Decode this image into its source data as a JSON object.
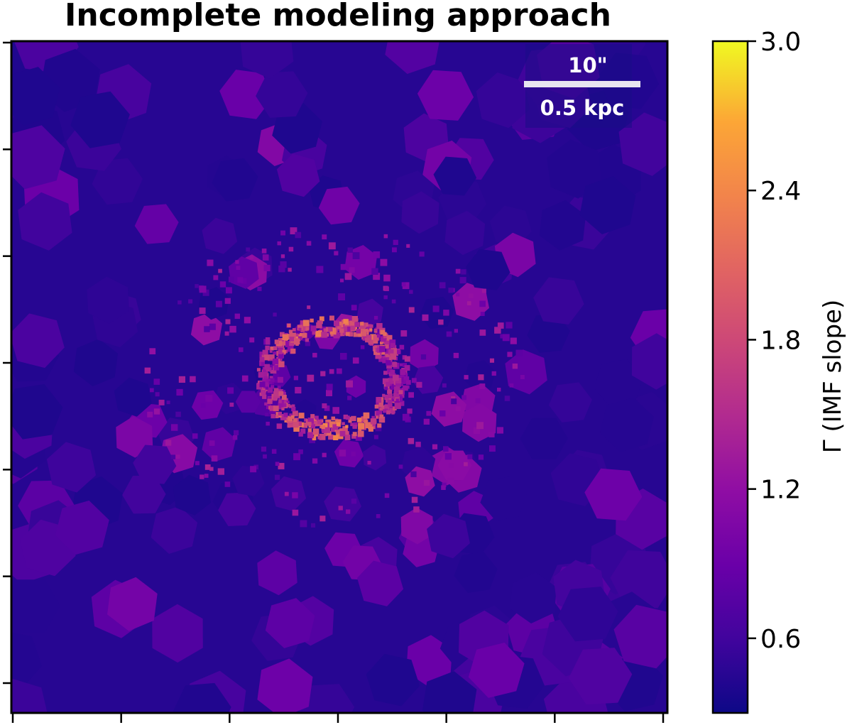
{
  "chart_data": {
    "type": "heatmap",
    "title": "Incomplete modeling approach",
    "colormap": "plasma",
    "colorbar": {
      "label": "Γ (IMF slope)",
      "range": [
        0.3,
        3.0
      ],
      "ticks": [
        0.6,
        1.2,
        1.8,
        2.4,
        3.0
      ],
      "tick_labels": [
        "0.6",
        "1.2",
        "1.8",
        "2.4",
        "3.0"
      ]
    },
    "x_axis": {
      "tick_count": 7,
      "tick_labels": []
    },
    "y_axis": {
      "tick_count": 7,
      "tick_labels": []
    },
    "background_value": 0.45,
    "features": [
      {
        "name": "nuclear ring",
        "value": 2.4,
        "center": [
          0.49,
          0.5
        ],
        "radii": [
          0.2,
          0.155
        ]
      },
      {
        "name": "ring inner region",
        "value": 1.3
      },
      {
        "name": "outer bins",
        "value_range": [
          0.4,
          1.5
        ]
      }
    ],
    "scale_bar": {
      "angular": "10\"",
      "physical": "0.5 kpc"
    }
  }
}
